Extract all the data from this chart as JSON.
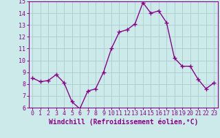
{
  "x": [
    0,
    1,
    2,
    3,
    4,
    5,
    6,
    7,
    8,
    9,
    10,
    11,
    12,
    13,
    14,
    15,
    16,
    17,
    18,
    19,
    20,
    21,
    22,
    23
  ],
  "y": [
    8.5,
    8.2,
    8.3,
    8.8,
    8.1,
    6.5,
    5.9,
    7.4,
    7.6,
    9.0,
    11.0,
    12.4,
    12.6,
    13.1,
    14.9,
    14.0,
    14.2,
    13.2,
    10.2,
    9.5,
    9.5,
    8.4,
    7.6,
    8.1
  ],
  "line_color": "#880088",
  "marker": "+",
  "marker_size": 4,
  "marker_lw": 1.0,
  "xlabel": "Windchill (Refroidissement éolien,°C)",
  "xlabel_fontsize": 7,
  "ylim": [
    6,
    15
  ],
  "xlim": [
    -0.5,
    23.5
  ],
  "yticks": [
    6,
    7,
    8,
    9,
    10,
    11,
    12,
    13,
    14,
    15
  ],
  "xticks": [
    0,
    1,
    2,
    3,
    4,
    5,
    6,
    7,
    8,
    9,
    10,
    11,
    12,
    13,
    14,
    15,
    16,
    17,
    18,
    19,
    20,
    21,
    22,
    23
  ],
  "grid_color": "#aacccc",
  "bg_color": "#cceaea",
  "tick_color": "#880088",
  "tick_fontsize": 6,
  "line_width": 1.0,
  "spine_color": "#880088"
}
